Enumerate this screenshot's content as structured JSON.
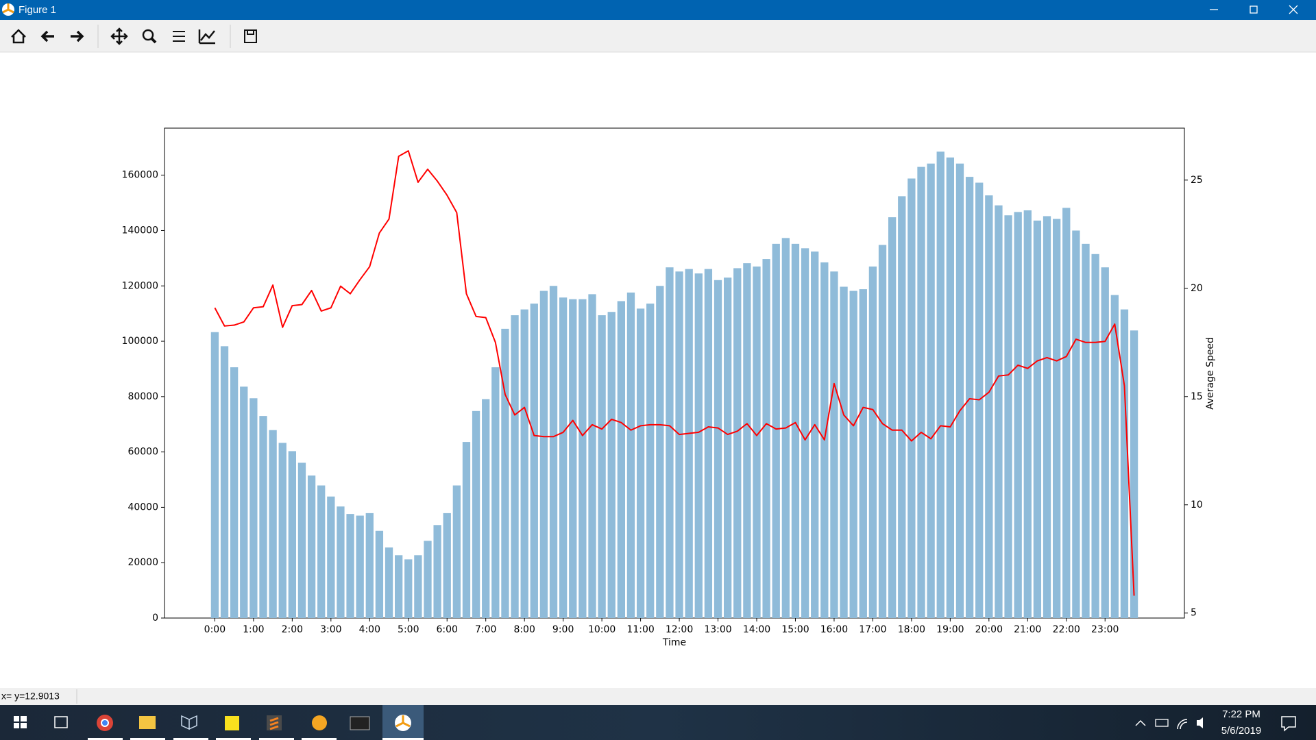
{
  "window": {
    "title": "Figure 1"
  },
  "status": "x= y=12.9013",
  "taskbar": {
    "time": "7:22 PM",
    "date": "5/6/2019"
  },
  "chart_data": {
    "type": "bar",
    "x_label": "Time",
    "y2_label": "Average Speed",
    "categories": [
      "0:00",
      null,
      null,
      null,
      "1:00",
      null,
      null,
      null,
      "2:00",
      null,
      null,
      null,
      "3:00",
      null,
      null,
      null,
      "4:00",
      null,
      null,
      null,
      "5:00",
      null,
      null,
      null,
      "6:00",
      null,
      null,
      null,
      "7:00",
      null,
      null,
      null,
      "8:00",
      null,
      null,
      null,
      "9:00",
      null,
      null,
      null,
      "10:00",
      null,
      null,
      null,
      "11:00",
      null,
      null,
      null,
      "12:00",
      null,
      null,
      null,
      "13:00",
      null,
      null,
      null,
      "14:00",
      null,
      null,
      null,
      "15:00",
      null,
      null,
      null,
      "16:00",
      null,
      null,
      null,
      "17:00",
      null,
      null,
      null,
      "18:00",
      null,
      null,
      null,
      "19:00",
      null,
      null,
      null,
      "20:00",
      null,
      null,
      null,
      "21:00",
      null,
      null,
      null,
      "22:00",
      null,
      null,
      null,
      "23:00",
      null,
      null,
      null
    ],
    "series": [
      {
        "type": "bar",
        "color": "#8fbbd9",
        "values": [
          103300,
          98200,
          90600,
          83600,
          79400,
          73000,
          67900,
          63300,
          60300,
          56100,
          51500,
          47900,
          43900,
          40300,
          37600,
          37000,
          37900,
          31500,
          25500,
          22700,
          21200,
          22700,
          27900,
          33600,
          37900,
          47900,
          63600,
          74800,
          79100,
          90600,
          104500,
          109400,
          111500,
          113600,
          118200,
          120000,
          115800,
          115200,
          115200,
          117000,
          109400,
          110600,
          114500,
          117600,
          111800,
          113600,
          120000,
          126700,
          125200,
          126100,
          124500,
          126100,
          122100,
          123000,
          126400,
          128200,
          127000,
          129700,
          135200,
          137300,
          135200,
          133600,
          132400,
          128500,
          125200,
          119700,
          118200,
          118800,
          127000,
          134800,
          144800,
          152400,
          158800,
          163000,
          164200,
          168500,
          166400,
          164200,
          159400,
          157300,
          152700,
          149100,
          145500,
          146700,
          147300,
          143600,
          145200,
          144200,
          148200,
          140000,
          135200,
          131500,
          126700,
          116700,
          111500,
          103900
        ]
      },
      {
        "type": "line",
        "axis": "y2",
        "color": "#ff0000",
        "values": [
          19.1,
          18.26,
          18.3,
          18.45,
          19.1,
          19.15,
          20.15,
          18.2,
          19.2,
          19.25,
          19.9,
          18.95,
          19.1,
          20.1,
          19.75,
          20.4,
          21.0,
          22.55,
          23.2,
          26.1,
          26.35,
          24.9,
          25.5,
          24.95,
          24.3,
          23.5,
          19.75,
          18.7,
          18.65,
          17.5,
          15.1,
          14.15,
          14.5,
          13.2,
          13.15,
          13.15,
          13.35,
          13.9,
          13.2,
          13.7,
          13.5,
          13.95,
          13.8,
          13.45,
          13.65,
          13.7,
          13.7,
          13.65,
          13.25,
          13.3,
          13.35,
          13.6,
          13.55,
          13.25,
          13.4,
          13.75,
          13.2,
          13.75,
          13.5,
          13.55,
          13.8,
          13.0,
          13.7,
          13.0,
          15.6,
          14.15,
          13.65,
          14.5,
          14.4,
          13.75,
          13.45,
          13.45,
          12.95,
          13.35,
          13.05,
          13.65,
          13.6,
          14.35,
          14.9,
          14.85,
          15.2,
          15.95,
          16.0,
          16.45,
          16.3,
          16.65,
          16.8,
          16.65,
          16.85,
          17.65,
          17.5,
          17.5,
          17.55,
          18.35,
          15.5,
          5.8
        ]
      }
    ],
    "ylim": [
      0,
      177000
    ],
    "yticks": [
      0,
      20000,
      40000,
      60000,
      80000,
      100000,
      120000,
      140000,
      160000
    ],
    "y2lim": [
      4.77,
      27.4
    ],
    "y2ticks": [
      5,
      10,
      15,
      20,
      25
    ]
  }
}
